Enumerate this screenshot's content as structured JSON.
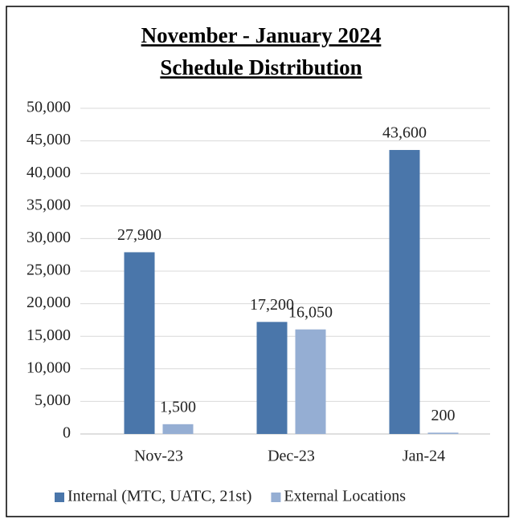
{
  "chart_data": {
    "type": "bar",
    "title": [
      "November - January 2024",
      "Schedule Distribution"
    ],
    "categories": [
      "Nov-23",
      "Dec-23",
      "Jan-24"
    ],
    "series": [
      {
        "name": "Internal (MTC, UATC, 21st)",
        "color": "#4a76aa",
        "values": [
          27900,
          17200,
          43600
        ],
        "value_labels": [
          "27,900",
          "17,200",
          "43,600"
        ]
      },
      {
        "name": "External Locations",
        "color": "#95aed3",
        "values": [
          1500,
          16050,
          200
        ],
        "value_labels": [
          "1,500",
          "16,050",
          "200"
        ]
      }
    ],
    "ylim": [
      0,
      50000
    ],
    "yticks": [
      0,
      {
        "value": 5000,
        "label": "5,000"
      },
      {
        "value": 10000,
        "label": "10,000"
      },
      {
        "value": 15000,
        "label": "15,000"
      },
      {
        "value": 20000,
        "label": "20,000"
      },
      {
        "value": 25000,
        "label": "25,000"
      },
      {
        "value": 30000,
        "label": "30,000"
      },
      {
        "value": 35000,
        "label": "35,000"
      },
      {
        "value": 40000,
        "label": "40,000"
      },
      {
        "value": 45000,
        "label": "45,000"
      },
      {
        "value": 50000,
        "label": "50,000"
      }
    ],
    "grid": true,
    "legend": "bottom"
  }
}
